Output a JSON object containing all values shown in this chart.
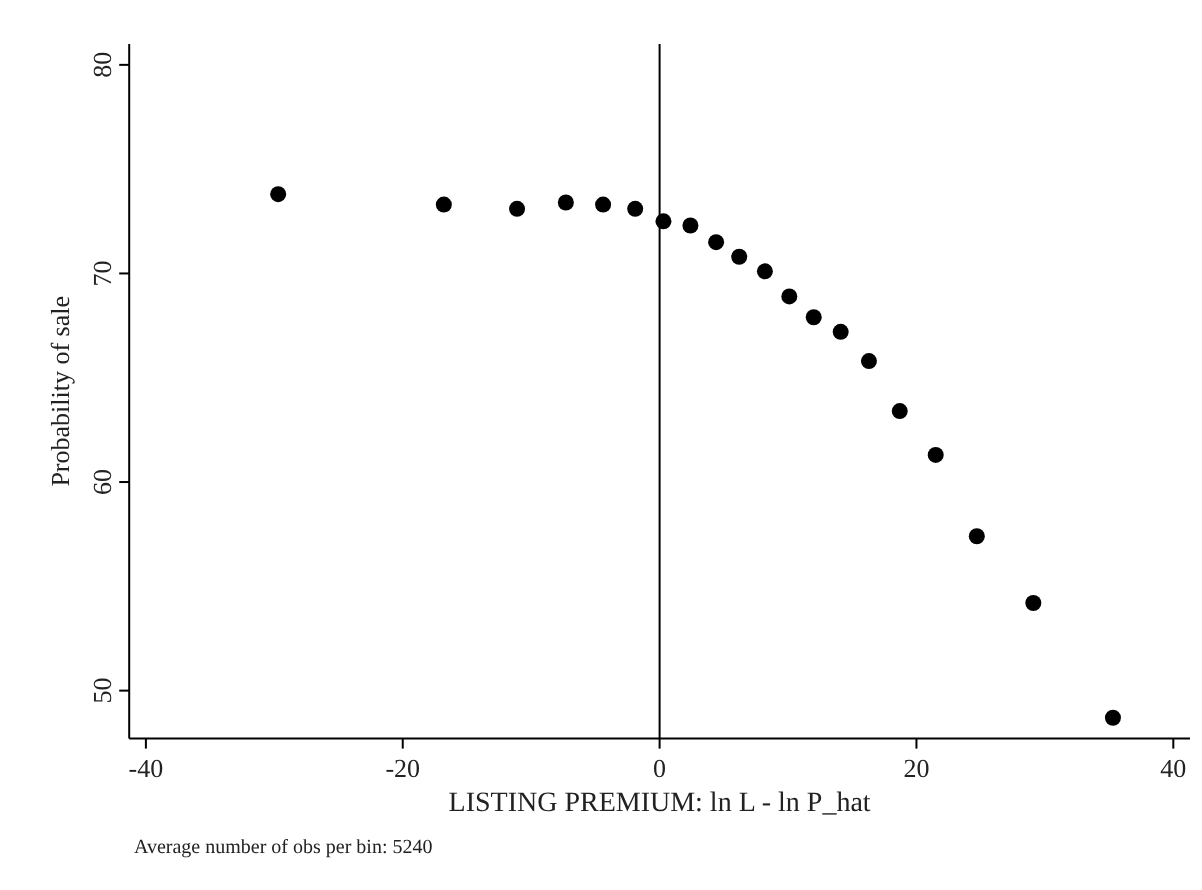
{
  "chart_data": {
    "type": "scatter",
    "xlabel": "LISTING PREMIUM: ln L - ln P_hat",
    "ylabel": "Probability of sale",
    "annotations": [
      "Average number of obs per bin: 5240"
    ],
    "x": [
      -29.7,
      -16.8,
      -11.1,
      -7.3,
      -4.4,
      -1.9,
      0.3,
      2.4,
      4.4,
      6.2,
      8.2,
      10.1,
      12.0,
      14.1,
      16.3,
      18.7,
      21.5,
      24.7,
      29.1,
      35.3
    ],
    "series": [
      {
        "color": "#000000",
        "values": [
          73.8,
          73.3,
          73.1,
          73.4,
          73.3,
          73.1,
          72.5,
          72.3,
          71.5,
          70.8,
          70.1,
          68.9,
          67.9,
          67.2,
          65.8,
          63.4,
          61.3,
          57.4,
          54.2,
          48.7
        ]
      }
    ],
    "xlim": [
      -41.3,
      41.3
    ],
    "xticks": [
      -40,
      -20,
      0,
      20,
      40
    ],
    "ylim": [
      47.7,
      81
    ],
    "yticks": [
      50,
      60,
      70,
      80
    ],
    "ref_lines": [
      {
        "axis": "x",
        "value": 0,
        "color": "#000000"
      }
    ],
    "grid": false,
    "marker": "circle"
  }
}
